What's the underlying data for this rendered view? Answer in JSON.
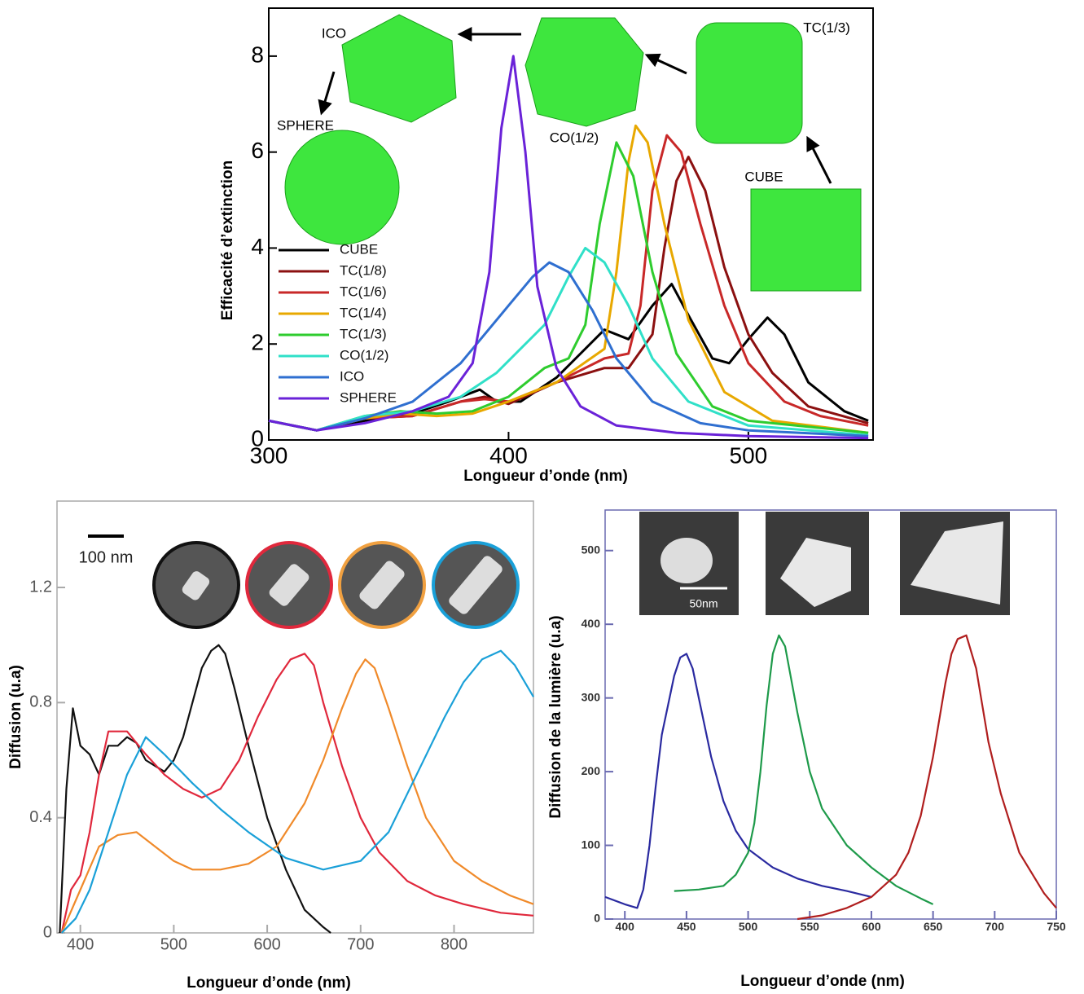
{
  "chart_data": [
    {
      "type": "line",
      "x_label": "Longueur d’onde (nm)",
      "y_label": "Efficacité d’extinction",
      "xlim": [
        300,
        552
      ],
      "ylim": [
        0,
        9
      ],
      "xticks": [
        300,
        400,
        500
      ],
      "yticks": [
        0,
        2,
        4,
        6,
        8
      ],
      "legend": "left",
      "annotations": [
        "ICO",
        "SPHERE",
        "CO(1/2)",
        "TC(1/3)",
        "CUBE"
      ],
      "series": [
        {
          "name": "CUBE",
          "color": "#000000",
          "x": [
            300,
            320,
            340,
            360,
            375,
            388,
            395,
            405,
            420,
            430,
            440,
            450,
            460,
            468,
            475,
            485,
            492,
            500,
            508,
            515,
            525,
            540,
            550
          ],
          "values": [
            0.4,
            0.2,
            0.4,
            0.55,
            0.8,
            1.05,
            0.8,
            0.8,
            1.3,
            1.8,
            2.3,
            2.1,
            2.8,
            3.25,
            2.6,
            1.7,
            1.6,
            2.1,
            2.55,
            2.2,
            1.2,
            0.6,
            0.4
          ]
        },
        {
          "name": "TC(1/8)",
          "color": "#8b1010",
          "x": [
            300,
            320,
            340,
            360,
            380,
            390,
            400,
            420,
            440,
            450,
            460,
            465,
            470,
            475,
            482,
            490,
            500,
            510,
            525,
            550
          ],
          "values": [
            0.4,
            0.2,
            0.45,
            0.5,
            0.8,
            0.9,
            0.75,
            1.2,
            1.5,
            1.5,
            2.2,
            4.0,
            5.4,
            5.9,
            5.2,
            3.6,
            2.2,
            1.4,
            0.7,
            0.35
          ]
        },
        {
          "name": "TC(1/6)",
          "color": "#c82828",
          "x": [
            300,
            320,
            340,
            360,
            380,
            390,
            400,
            420,
            440,
            450,
            455,
            460,
            466,
            472,
            480,
            490,
            500,
            515,
            530,
            550
          ],
          "values": [
            0.4,
            0.2,
            0.45,
            0.5,
            0.8,
            0.85,
            0.8,
            1.2,
            1.7,
            1.8,
            2.8,
            5.2,
            6.35,
            6.0,
            4.5,
            2.8,
            1.6,
            0.8,
            0.5,
            0.3
          ]
        },
        {
          "name": "TC(1/4)",
          "color": "#e8a800",
          "x": [
            300,
            320,
            340,
            355,
            370,
            385,
            400,
            420,
            440,
            445,
            450,
            453,
            458,
            465,
            475,
            490,
            510,
            550
          ],
          "values": [
            0.4,
            0.2,
            0.45,
            0.55,
            0.5,
            0.55,
            0.8,
            1.2,
            1.9,
            3.5,
            5.8,
            6.55,
            6.2,
            4.5,
            2.5,
            1.0,
            0.4,
            0.15
          ]
        },
        {
          "name": "TC(1/3)",
          "color": "#2ecc2e",
          "x": [
            300,
            320,
            340,
            355,
            370,
            385,
            400,
            415,
            425,
            432,
            438,
            445,
            452,
            460,
            470,
            485,
            500,
            550
          ],
          "values": [
            0.4,
            0.2,
            0.5,
            0.6,
            0.55,
            0.6,
            0.9,
            1.5,
            1.7,
            2.4,
            4.5,
            6.2,
            5.5,
            3.5,
            1.8,
            0.7,
            0.4,
            0.15
          ]
        },
        {
          "name": "CO(1/2)",
          "color": "#30e0c8",
          "x": [
            300,
            320,
            340,
            360,
            380,
            395,
            405,
            415,
            425,
            432,
            440,
            450,
            460,
            475,
            500,
            550
          ],
          "values": [
            0.4,
            0.2,
            0.5,
            0.6,
            0.9,
            1.4,
            1.9,
            2.4,
            3.4,
            4.0,
            3.7,
            2.8,
            1.7,
            0.8,
            0.3,
            0.1
          ]
        },
        {
          "name": "ICO",
          "color": "#2f6fd0",
          "x": [
            300,
            320,
            340,
            360,
            380,
            400,
            410,
            417,
            425,
            435,
            445,
            460,
            480,
            500,
            550
          ],
          "values": [
            0.4,
            0.2,
            0.45,
            0.8,
            1.6,
            2.8,
            3.4,
            3.7,
            3.5,
            2.7,
            1.7,
            0.8,
            0.35,
            0.2,
            0.08
          ]
        },
        {
          "name": "SPHERE",
          "color": "#6a22d8",
          "x": [
            300,
            320,
            340,
            360,
            375,
            385,
            392,
            397,
            402,
            407,
            412,
            420,
            430,
            445,
            470,
            500,
            550
          ],
          "values": [
            0.4,
            0.2,
            0.35,
            0.6,
            0.9,
            1.6,
            3.5,
            6.5,
            8.0,
            6.0,
            3.2,
            1.5,
            0.7,
            0.3,
            0.15,
            0.08,
            0.04
          ]
        }
      ]
    },
    {
      "type": "line",
      "x_label": "Longueur d’onde (nm)",
      "y_label": "Diffusion (u.a)",
      "xlim": [
        375,
        885
      ],
      "ylim": [
        0,
        1.5
      ],
      "xticks": [
        400,
        500,
        600,
        700,
        800
      ],
      "yticks": [
        0,
        0.4,
        0.8,
        1.2
      ],
      "annotations": [
        "100 nm"
      ],
      "series": [
        {
          "color": "#111111",
          "x": [
            378,
            385,
            392,
            400,
            410,
            420,
            430,
            440,
            450,
            460,
            470,
            480,
            490,
            500,
            510,
            520,
            530,
            540,
            548,
            555,
            565,
            580,
            600,
            620,
            640,
            660,
            668
          ],
          "values": [
            0,
            0.5,
            0.78,
            0.65,
            0.62,
            0.55,
            0.65,
            0.65,
            0.68,
            0.66,
            0.6,
            0.58,
            0.56,
            0.6,
            0.68,
            0.8,
            0.92,
            0.98,
            1.0,
            0.97,
            0.85,
            0.65,
            0.4,
            0.22,
            0.08,
            0.02,
            0
          ]
        },
        {
          "color": "#e0283c",
          "x": [
            380,
            390,
            400,
            410,
            420,
            430,
            450,
            470,
            490,
            510,
            530,
            550,
            570,
            590,
            610,
            625,
            640,
            650,
            660,
            680,
            700,
            720,
            750,
            780,
            810,
            850,
            885
          ],
          "values": [
            0,
            0.15,
            0.2,
            0.35,
            0.55,
            0.7,
            0.7,
            0.62,
            0.55,
            0.5,
            0.47,
            0.5,
            0.6,
            0.75,
            0.88,
            0.95,
            0.97,
            0.93,
            0.8,
            0.58,
            0.4,
            0.28,
            0.18,
            0.13,
            0.1,
            0.07,
            0.06
          ]
        },
        {
          "color": "#f08a2a",
          "x": [
            380,
            400,
            420,
            440,
            460,
            480,
            500,
            520,
            550,
            580,
            610,
            640,
            660,
            680,
            695,
            705,
            715,
            730,
            750,
            770,
            800,
            830,
            860,
            885
          ],
          "values": [
            0,
            0.15,
            0.3,
            0.34,
            0.35,
            0.3,
            0.25,
            0.22,
            0.22,
            0.24,
            0.3,
            0.45,
            0.6,
            0.78,
            0.9,
            0.95,
            0.92,
            0.78,
            0.58,
            0.4,
            0.25,
            0.18,
            0.13,
            0.1
          ]
        },
        {
          "color": "#1aa0d8",
          "x": [
            380,
            395,
            410,
            430,
            450,
            470,
            490,
            520,
            550,
            580,
            620,
            660,
            700,
            730,
            760,
            790,
            810,
            830,
            850,
            865,
            885
          ],
          "values": [
            0,
            0.05,
            0.15,
            0.35,
            0.55,
            0.68,
            0.62,
            0.52,
            0.43,
            0.35,
            0.26,
            0.22,
            0.25,
            0.35,
            0.55,
            0.75,
            0.87,
            0.95,
            0.98,
            0.93,
            0.82
          ]
        }
      ]
    },
    {
      "type": "line",
      "x_label": "Longueur d’onde (nm)",
      "y_label": "Diffusion de la lumière (u.a)",
      "xlim": [
        384,
        750
      ],
      "ylim": [
        0,
        555
      ],
      "xticks": [
        400,
        450,
        500,
        550,
        600,
        650,
        700,
        750
      ],
      "yticks": [
        0,
        100,
        200,
        300,
        400,
        500
      ],
      "annotations": [
        "50nm"
      ],
      "series": [
        {
          "color": "#2a2aa0",
          "x": [
            384,
            400,
            410,
            415,
            420,
            425,
            430,
            440,
            445,
            450,
            455,
            460,
            470,
            480,
            490,
            500,
            520,
            540,
            560,
            580,
            600
          ],
          "values": [
            30,
            20,
            15,
            40,
            100,
            180,
            250,
            330,
            355,
            360,
            340,
            300,
            220,
            160,
            120,
            95,
            70,
            55,
            45,
            38,
            30
          ]
        },
        {
          "color": "#1e9a4a",
          "x": [
            440,
            460,
            480,
            490,
            500,
            505,
            510,
            515,
            520,
            525,
            530,
            540,
            550,
            560,
            580,
            600,
            620,
            640,
            650
          ],
          "values": [
            38,
            40,
            45,
            60,
            90,
            130,
            200,
            290,
            360,
            385,
            370,
            280,
            200,
            150,
            100,
            70,
            45,
            28,
            20
          ]
        },
        {
          "color": "#b01e1e",
          "x": [
            540,
            560,
            580,
            600,
            620,
            630,
            640,
            650,
            660,
            665,
            670,
            677,
            685,
            695,
            705,
            720,
            740,
            750
          ],
          "values": [
            0,
            5,
            15,
            30,
            60,
            90,
            140,
            220,
            320,
            360,
            380,
            385,
            340,
            240,
            170,
            90,
            35,
            15
          ]
        }
      ]
    }
  ]
}
